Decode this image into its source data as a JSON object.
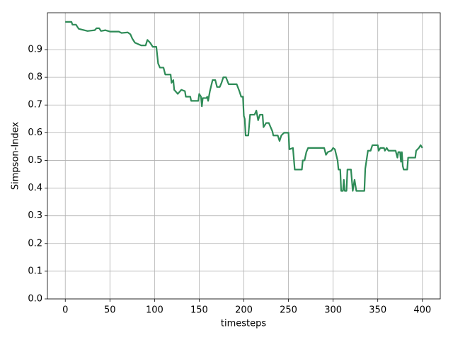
{
  "chart_data": {
    "type": "line",
    "xlabel": "timesteps",
    "ylabel": "Simpson-Index",
    "x": [
      0,
      7,
      8,
      12,
      15,
      25,
      33,
      35,
      38,
      40,
      45,
      50,
      60,
      63,
      70,
      73,
      75,
      78,
      85,
      90,
      92,
      95,
      98,
      102,
      104,
      106,
      110,
      112,
      118,
      119,
      121,
      122,
      126,
      130,
      134,
      135,
      140,
      141,
      149,
      150,
      152,
      153,
      154,
      158,
      159,
      160,
      162,
      165,
      168,
      170,
      173,
      175,
      177,
      180,
      183,
      192,
      195,
      197,
      199,
      200,
      201,
      202,
      205,
      207,
      212,
      214,
      216,
      218,
      221,
      222,
      225,
      228,
      232,
      233,
      238,
      240,
      242,
      245,
      250,
      251,
      255,
      257,
      265,
      266,
      268,
      270,
      272,
      290,
      292,
      294,
      298,
      300,
      302,
      305,
      306,
      308,
      309,
      311,
      312,
      313,
      315,
      316,
      320,
      322,
      324,
      326,
      335,
      336,
      339,
      342,
      344,
      350,
      351,
      353,
      357,
      358,
      360,
      362,
      370,
      372,
      373,
      375,
      376,
      377,
      378,
      379,
      383,
      384,
      392,
      393,
      396,
      398,
      400
    ],
    "series": [
      {
        "color": "#2e8b57",
        "values": [
          1.0,
          1.0,
          0.99,
          0.99,
          0.975,
          0.967,
          0.97,
          0.977,
          0.977,
          0.967,
          0.97,
          0.965,
          0.965,
          0.96,
          0.962,
          0.955,
          0.94,
          0.925,
          0.915,
          0.915,
          0.935,
          0.925,
          0.91,
          0.91,
          0.85,
          0.835,
          0.835,
          0.81,
          0.81,
          0.78,
          0.79,
          0.755,
          0.74,
          0.755,
          0.75,
          0.73,
          0.73,
          0.715,
          0.715,
          0.74,
          0.73,
          0.695,
          0.725,
          0.725,
          0.73,
          0.715,
          0.75,
          0.79,
          0.79,
          0.765,
          0.765,
          0.78,
          0.8,
          0.8,
          0.775,
          0.775,
          0.75,
          0.73,
          0.73,
          0.66,
          0.65,
          0.59,
          0.59,
          0.665,
          0.665,
          0.68,
          0.645,
          0.665,
          0.665,
          0.62,
          0.635,
          0.635,
          0.605,
          0.59,
          0.59,
          0.57,
          0.59,
          0.6,
          0.6,
          0.54,
          0.545,
          0.467,
          0.467,
          0.5,
          0.5,
          0.53,
          0.545,
          0.545,
          0.52,
          0.53,
          0.535,
          0.545,
          0.54,
          0.5,
          0.467,
          0.467,
          0.39,
          0.39,
          0.43,
          0.39,
          0.39,
          0.467,
          0.467,
          0.39,
          0.43,
          0.39,
          0.39,
          0.47,
          0.535,
          0.535,
          0.555,
          0.555,
          0.535,
          0.545,
          0.545,
          0.535,
          0.545,
          0.535,
          0.535,
          0.51,
          0.53,
          0.53,
          0.495,
          0.53,
          0.48,
          0.467,
          0.467,
          0.51,
          0.51,
          0.535,
          0.545,
          0.555,
          0.545
        ]
      }
    ],
    "xlim": [
      -20,
      420
    ],
    "xticks": [
      0,
      50,
      100,
      150,
      200,
      250,
      300,
      350,
      400
    ],
    "ylim": [
      0,
      1.033
    ],
    "yticks": [
      {
        "value": 0,
        "label": "0.0"
      },
      0.1,
      0.2,
      0.3,
      0.4,
      0.5,
      0.6,
      0.7,
      0.8,
      0.9
    ],
    "grid": true
  }
}
